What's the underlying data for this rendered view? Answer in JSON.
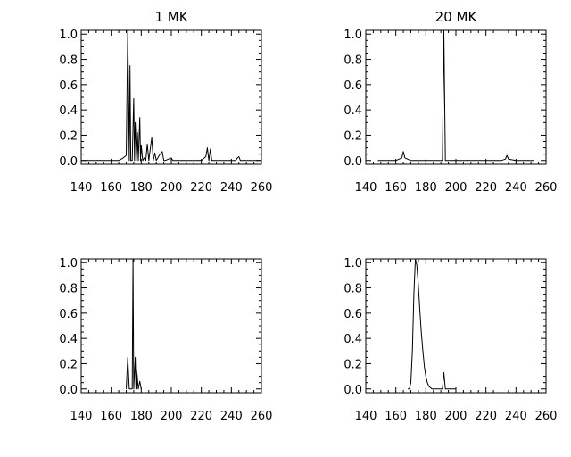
{
  "chart_data": [
    {
      "type": "line",
      "title": "1  MK",
      "xlim": [
        140,
        260
      ],
      "ylim": [
        -0.03,
        1.03
      ],
      "xticks": [
        140,
        160,
        180,
        200,
        220,
        240,
        260
      ],
      "xtick_labels": [
        "140",
        "160",
        "180",
        "200",
        "220",
        "240",
        "260"
      ],
      "yticks": [
        0.0,
        0.2,
        0.4,
        0.6,
        0.8,
        1.0
      ],
      "ytick_labels": [
        "0.0",
        "0.2",
        "0.4",
        "0.6",
        "0.8",
        "1.0"
      ],
      "grid": false,
      "series": [
        {
          "x": [
            140,
            165,
            168,
            170,
            171,
            172,
            172.5,
            173,
            174,
            175,
            175.5,
            176,
            177,
            177.5,
            178,
            179,
            179.5,
            180,
            181,
            182,
            183,
            184,
            185,
            186,
            187,
            188,
            189,
            190,
            192,
            194,
            195,
            196,
            198,
            200,
            201,
            202,
            205,
            210,
            220,
            223,
            224,
            225,
            226,
            227,
            228,
            230,
            240,
            243,
            244,
            245,
            246,
            250,
            260
          ],
          "y": [
            0.0,
            0.0,
            0.02,
            0.04,
            1.03,
            0.0,
            0.75,
            0.0,
            0.0,
            0.49,
            0.0,
            0.3,
            0.0,
            0.22,
            0.0,
            0.34,
            0.0,
            0.12,
            0.0,
            0.02,
            0.0,
            0.13,
            0.0,
            0.09,
            0.18,
            0.0,
            0.06,
            0.0,
            0.04,
            0.07,
            0.0,
            0.0,
            0.01,
            0.02,
            0.0,
            0.0,
            0.0,
            0.0,
            0.0,
            0.03,
            0.1,
            0.0,
            0.09,
            0.0,
            0.0,
            0.0,
            0.0,
            0.0,
            0.02,
            0.03,
            0.0,
            0.0,
            0.0
          ]
        }
      ]
    },
    {
      "type": "line",
      "title": "20  MK",
      "xlim": [
        140,
        260
      ],
      "ylim": [
        -0.03,
        1.03
      ],
      "xticks": [
        140,
        160,
        180,
        200,
        220,
        240,
        260
      ],
      "xtick_labels": [
        "140",
        "160",
        "180",
        "200",
        "220",
        "240",
        "260"
      ],
      "yticks": [
        0.0,
        0.2,
        0.4,
        0.6,
        0.8,
        1.0
      ],
      "ytick_labels": [
        "0.0",
        "0.2",
        "0.4",
        "0.6",
        "0.8",
        "1.0"
      ],
      "grid": false,
      "series": [
        {
          "x": [
            148,
            160,
            164,
            165,
            166,
            170,
            190,
            191,
            192,
            193,
            194,
            195,
            230,
            233,
            234,
            235,
            240,
            250,
            252
          ],
          "y": [
            0.0,
            0.0,
            0.02,
            0.07,
            0.02,
            0.0,
            0.0,
            0.0,
            1.03,
            0.0,
            0.0,
            0.0,
            0.0,
            0.01,
            0.04,
            0.01,
            0.0,
            0.0,
            0.0
          ]
        }
      ]
    },
    {
      "type": "line",
      "title": "",
      "xlim": [
        140,
        260
      ],
      "ylim": [
        -0.03,
        1.03
      ],
      "xticks": [
        140,
        160,
        180,
        200,
        220,
        240,
        260
      ],
      "xtick_labels": [
        "140",
        "160",
        "180",
        "200",
        "220",
        "240",
        "260"
      ],
      "yticks": [
        0.0,
        0.2,
        0.4,
        0.6,
        0.8,
        1.0
      ],
      "ytick_labels": [
        "0.0",
        "0.2",
        "0.4",
        "0.6",
        "0.8",
        "1.0"
      ],
      "grid": false,
      "series": [
        {
          "x": [
            170,
            171,
            172,
            173,
            174,
            174.5,
            175,
            176,
            176.5,
            177,
            178,
            179,
            180
          ],
          "y": [
            0.0,
            0.25,
            0.0,
            0.0,
            0.0,
            1.03,
            0.0,
            0.25,
            0.0,
            0.15,
            0.0,
            0.06,
            0.0
          ]
        }
      ]
    },
    {
      "type": "line",
      "title": "",
      "xlim": [
        140,
        260
      ],
      "ylim": [
        -0.03,
        1.03
      ],
      "xticks": [
        140,
        160,
        180,
        200,
        220,
        240,
        260
      ],
      "xtick_labels": [
        "140",
        "160",
        "180",
        "200",
        "220",
        "240",
        "260"
      ],
      "yticks": [
        0.0,
        0.2,
        0.4,
        0.6,
        0.8,
        1.0
      ],
      "ytick_labels": [
        "0.0",
        "0.2",
        "0.4",
        "0.6",
        "0.8",
        "1.0"
      ],
      "grid": false,
      "series": [
        {
          "x": [
            168,
            169,
            170,
            171,
            172,
            173,
            174,
            175,
            176,
            177,
            178,
            179,
            180,
            181,
            182,
            183,
            184,
            186,
            188,
            190,
            191,
            192,
            193,
            194,
            196,
            200
          ],
          "y": [
            0.0,
            0.0,
            0.05,
            0.3,
            0.75,
            1.03,
            0.98,
            0.82,
            0.62,
            0.44,
            0.3,
            0.18,
            0.1,
            0.05,
            0.02,
            0.01,
            0.0,
            0.0,
            0.0,
            0.0,
            0.0,
            0.13,
            0.0,
            0.0,
            0.0,
            0.0
          ]
        }
      ]
    }
  ]
}
